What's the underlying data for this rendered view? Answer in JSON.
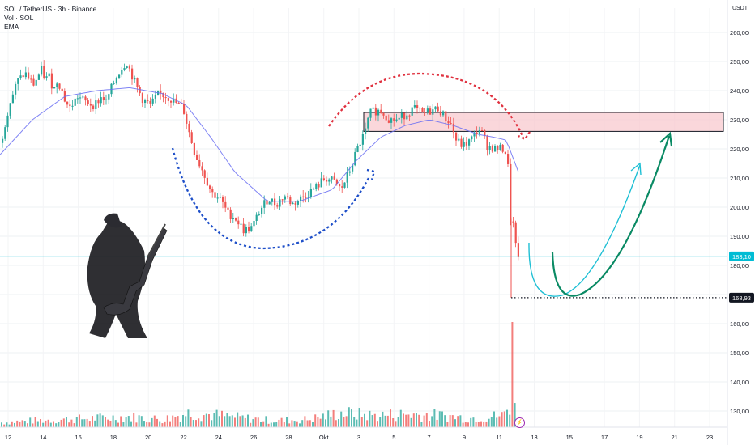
{
  "header": {
    "symbol_title": "SOL / TetherUS · 3h · Binance",
    "volume_label": "Vol · SOL",
    "ema_label": "EMA"
  },
  "axis": {
    "unit_label": "USDT"
  },
  "colors": {
    "up": "#26a69a",
    "down": "#ef5350",
    "ema": "#6a6ff2",
    "price_line": "#00bcd4",
    "zone_fill": "#f8c9cf",
    "arc_blue": "#1e4fc9",
    "arc_red": "#e0313f",
    "arrow_cyan": "#1ebfd4",
    "arrow_green": "#0a8a64"
  },
  "icons": {
    "event_icon": "lightning-icon",
    "illustration": "bear-playing-guitar-illustration"
  },
  "chart_data": {
    "type": "candlestick",
    "title": "SOL / TetherUS · 3h · Binance",
    "ylabel": "USDT",
    "ylim": [
      125,
      268
    ],
    "y_ticks": [
      130,
      140,
      150,
      160,
      170,
      180,
      190,
      200,
      210,
      220,
      230,
      240,
      250,
      260
    ],
    "y_tick_labels": [
      "130,00",
      "140,00",
      "150,00",
      "160,00",
      "170,00",
      "180,00",
      "190,00",
      "200,00",
      "210,00",
      "220,00",
      "230,00",
      "240,00",
      "250,00",
      "260,00"
    ],
    "x_ticks": [
      "12",
      "14",
      "16",
      "18",
      "20",
      "22",
      "24",
      "26",
      "28",
      "Okt",
      "3",
      "5",
      "7",
      "9",
      "11",
      "13",
      "15",
      "17",
      "19",
      "21",
      "23"
    ],
    "series": [
      {
        "name": "SOL / TetherUS",
        "anchors": [
          [
            0,
            222
          ],
          [
            10,
            235
          ],
          [
            20,
            243
          ],
          [
            30,
            246
          ],
          [
            40,
            242
          ],
          [
            50,
            247
          ],
          [
            55,
            244
          ],
          [
            60,
            245
          ],
          [
            65,
            240
          ],
          [
            70,
            244
          ],
          [
            80,
            236
          ],
          [
            85,
            234
          ],
          [
            95,
            238
          ],
          [
            105,
            236
          ],
          [
            115,
            235
          ],
          [
            125,
            238
          ],
          [
            130,
            236
          ],
          [
            135,
            240
          ],
          [
            145,
            246
          ],
          [
            155,
            250
          ],
          [
            165,
            243
          ],
          [
            175,
            237
          ],
          [
            185,
            235
          ],
          [
            195,
            239
          ],
          [
            205,
            238
          ],
          [
            215,
            236
          ],
          [
            225,
            234
          ],
          [
            232,
            226
          ],
          [
            240,
            218
          ],
          [
            250,
            212
          ],
          [
            260,
            205
          ],
          [
            270,
            203
          ],
          [
            280,
            198
          ],
          [
            290,
            196
          ],
          [
            300,
            192
          ],
          [
            310,
            193
          ],
          [
            320,
            199
          ],
          [
            330,
            203
          ],
          [
            340,
            201
          ],
          [
            350,
            204
          ],
          [
            360,
            201
          ],
          [
            370,
            203
          ],
          [
            380,
            205
          ],
          [
            390,
            207
          ],
          [
            400,
            210
          ],
          [
            410,
            209
          ],
          [
            420,
            206
          ],
          [
            430,
            212
          ],
          [
            440,
            220
          ],
          [
            450,
            226
          ],
          [
            455,
            232
          ],
          [
            460,
            233
          ],
          [
            470,
            233
          ],
          [
            480,
            230
          ],
          [
            490,
            230
          ],
          [
            500,
            232
          ],
          [
            510,
            234
          ],
          [
            520,
            232
          ],
          [
            530,
            233
          ],
          [
            540,
            234
          ],
          [
            550,
            230
          ],
          [
            555,
            229
          ],
          [
            562,
            223
          ],
          [
            570,
            221
          ],
          [
            580,
            223
          ],
          [
            590,
            227
          ],
          [
            595,
            225
          ],
          [
            600,
            221
          ],
          [
            610,
            220
          ],
          [
            620,
            220
          ],
          [
            625,
            218
          ],
          [
            628,
            205
          ],
          [
            630,
            190
          ],
          [
            633,
            195
          ],
          [
            636,
            185
          ],
          [
            640,
            183.1
          ]
        ]
      },
      {
        "name": "EMA",
        "anchors": [
          [
            0,
            218
          ],
          [
            40,
            230
          ],
          [
            80,
            238
          ],
          [
            120,
            240
          ],
          [
            160,
            241
          ],
          [
            200,
            239
          ],
          [
            230,
            235
          ],
          [
            260,
            224
          ],
          [
            290,
            212
          ],
          [
            330,
            202
          ],
          [
            370,
            202
          ],
          [
            410,
            206
          ],
          [
            440,
            216
          ],
          [
            470,
            224
          ],
          [
            500,
            228
          ],
          [
            530,
            230
          ],
          [
            560,
            228
          ],
          [
            590,
            225
          ],
          [
            610,
            224
          ],
          [
            625,
            223
          ],
          [
            640,
            212
          ]
        ]
      }
    ],
    "volume_anchors": [
      [
        0,
        0.18
      ],
      [
        40,
        0.25
      ],
      [
        80,
        0.3
      ],
      [
        120,
        0.35
      ],
      [
        160,
        0.4
      ],
      [
        200,
        0.3
      ],
      [
        232,
        0.55
      ],
      [
        270,
        0.45
      ],
      [
        300,
        0.35
      ],
      [
        340,
        0.25
      ],
      [
        380,
        0.3
      ],
      [
        420,
        0.55
      ],
      [
        460,
        0.45
      ],
      [
        500,
        0.5
      ],
      [
        540,
        0.45
      ],
      [
        580,
        0.35
      ],
      [
        620,
        0.45
      ],
      [
        631,
        1.0
      ],
      [
        636,
        0.6
      ],
      [
        640,
        0.4
      ]
    ],
    "current_price": 183.1,
    "current_price_label": "183,10",
    "support_level": 168.93,
    "support_label": "168,93",
    "resistance_zone": [
      226,
      232.5
    ],
    "legend_placement": "top-left",
    "grid": true
  }
}
